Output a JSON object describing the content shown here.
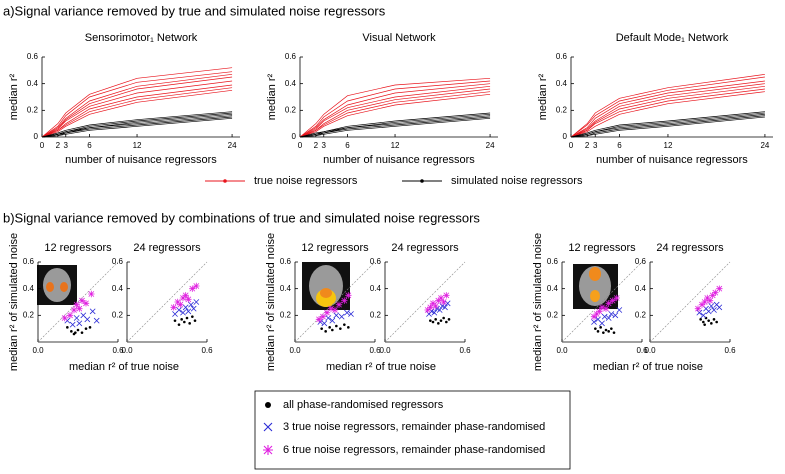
{
  "panel_a_title": "a)Signal variance removed by true and simulated noise regressors",
  "panel_b_title": "b)Signal variance removed by combinations of true and simulated noise regressors",
  "chart_data": [
    {
      "type": "line",
      "title": "Sensorimotor₁ Network",
      "xlabel": "number of nuisance regressors",
      "ylabel": "median r²",
      "x": [
        0,
        2,
        3,
        6,
        12,
        24
      ],
      "xlim": [
        0,
        25
      ],
      "xticks": [
        0,
        2,
        3,
        6,
        12,
        24
      ],
      "ylim": [
        0,
        0.6
      ],
      "yticks": [
        0,
        0.2,
        0.4,
        0.6
      ],
      "series": [
        {
          "name": "true noise regressors",
          "color": "#e8141c",
          "lines": [
            [
              0,
              0.1,
              0.18,
              0.32,
              0.44,
              0.52
            ],
            [
              0,
              0.08,
              0.16,
              0.3,
              0.41,
              0.49
            ],
            [
              0,
              0.07,
              0.14,
              0.27,
              0.38,
              0.47
            ],
            [
              0,
              0.06,
              0.13,
              0.25,
              0.36,
              0.45
            ],
            [
              0,
              0.06,
              0.12,
              0.23,
              0.33,
              0.42
            ],
            [
              0,
              0.05,
              0.1,
              0.21,
              0.3,
              0.39
            ],
            [
              0,
              0.05,
              0.09,
              0.19,
              0.28,
              0.37
            ],
            [
              0,
              0.04,
              0.08,
              0.17,
              0.26,
              0.35
            ]
          ]
        },
        {
          "name": "simulated noise regressors",
          "color": "#000000",
          "lines": [
            [
              0,
              0.03,
              0.05,
              0.09,
              0.13,
              0.19
            ],
            [
              0,
              0.02,
              0.04,
              0.08,
              0.12,
              0.18
            ],
            [
              0,
              0.02,
              0.04,
              0.07,
              0.11,
              0.17
            ],
            [
              0,
              0.02,
              0.03,
              0.07,
              0.1,
              0.16
            ],
            [
              0,
              0.01,
              0.03,
              0.06,
              0.09,
              0.15
            ],
            [
              0,
              0.01,
              0.02,
              0.05,
              0.08,
              0.14
            ]
          ]
        }
      ]
    },
    {
      "type": "line",
      "title": "Visual Network",
      "xlabel": "number of nuisance regressors",
      "ylabel": "median r²",
      "x": [
        0,
        2,
        3,
        6,
        12,
        24
      ],
      "xlim": [
        0,
        25
      ],
      "xticks": [
        0,
        2,
        3,
        6,
        12,
        24
      ],
      "ylim": [
        0,
        0.6
      ],
      "yticks": [
        0,
        0.2,
        0.4,
        0.6
      ],
      "series": [
        {
          "color": "#e8141c",
          "lines": [
            [
              0,
              0.1,
              0.17,
              0.31,
              0.39,
              0.44
            ],
            [
              0,
              0.08,
              0.15,
              0.27,
              0.36,
              0.42
            ],
            [
              0,
              0.07,
              0.13,
              0.24,
              0.33,
              0.4
            ],
            [
              0,
              0.06,
              0.12,
              0.22,
              0.3,
              0.38
            ],
            [
              0,
              0.05,
              0.1,
              0.2,
              0.28,
              0.36
            ],
            [
              0,
              0.05,
              0.09,
              0.18,
              0.26,
              0.34
            ],
            [
              0,
              0.04,
              0.08,
              0.16,
              0.24,
              0.32
            ]
          ]
        },
        {
          "color": "#000000",
          "lines": [
            [
              0,
              0.03,
              0.04,
              0.08,
              0.12,
              0.18
            ],
            [
              0,
              0.02,
              0.04,
              0.07,
              0.11,
              0.17
            ],
            [
              0,
              0.02,
              0.03,
              0.07,
              0.1,
              0.16
            ],
            [
              0,
              0.01,
              0.03,
              0.06,
              0.09,
              0.15
            ],
            [
              0,
              0.01,
              0.02,
              0.05,
              0.08,
              0.14
            ]
          ]
        }
      ]
    },
    {
      "type": "line",
      "title": "Default Mode₁ Network",
      "xlabel": "number of nuisance regressors",
      "ylabel": "median r²",
      "x": [
        0,
        2,
        3,
        6,
        12,
        24
      ],
      "xlim": [
        0,
        25
      ],
      "xticks": [
        0,
        2,
        3,
        6,
        12,
        24
      ],
      "ylim": [
        0,
        0.6
      ],
      "yticks": [
        0,
        0.2,
        0.4,
        0.6
      ],
      "series": [
        {
          "color": "#e8141c",
          "lines": [
            [
              0,
              0.1,
              0.18,
              0.29,
              0.37,
              0.47
            ],
            [
              0,
              0.09,
              0.16,
              0.27,
              0.35,
              0.45
            ],
            [
              0,
              0.07,
              0.14,
              0.25,
              0.33,
              0.42
            ],
            [
              0,
              0.06,
              0.12,
              0.23,
              0.31,
              0.4
            ],
            [
              0,
              0.05,
              0.11,
              0.21,
              0.29,
              0.38
            ],
            [
              0,
              0.05,
              0.1,
              0.19,
              0.27,
              0.36
            ],
            [
              0,
              0.04,
              0.08,
              0.17,
              0.25,
              0.34
            ]
          ]
        },
        {
          "color": "#000000",
          "lines": [
            [
              0,
              0.03,
              0.05,
              0.09,
              0.12,
              0.19
            ],
            [
              0,
              0.02,
              0.04,
              0.08,
              0.11,
              0.18
            ],
            [
              0,
              0.02,
              0.04,
              0.07,
              0.1,
              0.17
            ],
            [
              0,
              0.01,
              0.03,
              0.06,
              0.09,
              0.16
            ],
            [
              0,
              0.01,
              0.02,
              0.05,
              0.08,
              0.15
            ]
          ]
        }
      ]
    },
    {
      "type": "scatter",
      "title": "12 regressors",
      "xlabel": "median r² of true noise",
      "ylabel": "median r² of simulated noise",
      "xlim": [
        0,
        0.6
      ],
      "ylim": [
        0,
        0.6
      ],
      "xticks": [
        {
          "value": 0,
          "label": "0.0"
        },
        {
          "value": 0.6,
          "label": "0.6"
        }
      ],
      "yticks": [
        0.2,
        0.4,
        0.6
      ],
      "series": [
        {
          "name": "all phase-randomised regressors",
          "color": "#000000",
          "marker": "dot",
          "x": [
            0.22,
            0.25,
            0.28,
            0.3,
            0.33,
            0.36,
            0.39,
            0.27
          ],
          "y": [
            0.11,
            0.08,
            0.07,
            0.09,
            0.07,
            0.1,
            0.11,
            0.06
          ]
        },
        {
          "name": "3 true noise regressors, remainder phase-randomised",
          "color": "#2b2bd6",
          "marker": "x",
          "x": [
            0.22,
            0.26,
            0.29,
            0.31,
            0.34,
            0.37,
            0.41,
            0.44
          ],
          "y": [
            0.16,
            0.13,
            0.18,
            0.14,
            0.2,
            0.17,
            0.23,
            0.16
          ]
        },
        {
          "name": "6 true noise regressors, remainder phase-randomised",
          "color": "#e020e0",
          "marker": "star",
          "x": [
            0.2,
            0.24,
            0.27,
            0.29,
            0.31,
            0.33,
            0.36,
            0.4
          ],
          "y": [
            0.18,
            0.2,
            0.24,
            0.28,
            0.25,
            0.31,
            0.29,
            0.36
          ]
        }
      ]
    },
    {
      "type": "scatter",
      "title": "24 regressors",
      "xlim": [
        0,
        0.6
      ],
      "ylim": [
        0,
        0.6
      ],
      "xticks": [
        {
          "value": 0,
          "label": "0.0"
        },
        {
          "value": 0.6,
          "label": "0.6"
        }
      ],
      "yticks": [
        0.2,
        0.4,
        0.6
      ],
      "series": [
        {
          "color": "#000000",
          "marker": "dot",
          "x": [
            0.36,
            0.39,
            0.41,
            0.43,
            0.45,
            0.47,
            0.49,
            0.51
          ],
          "y": [
            0.16,
            0.13,
            0.17,
            0.15,
            0.18,
            0.14,
            0.19,
            0.16
          ]
        },
        {
          "color": "#2b2bd6",
          "marker": "x",
          "x": [
            0.36,
            0.39,
            0.42,
            0.44,
            0.46,
            0.48,
            0.5,
            0.52
          ],
          "y": [
            0.21,
            0.24,
            0.22,
            0.26,
            0.23,
            0.28,
            0.25,
            0.3
          ]
        },
        {
          "color": "#e020e0",
          "marker": "star",
          "x": [
            0.35,
            0.38,
            0.4,
            0.42,
            0.44,
            0.46,
            0.49,
            0.52
          ],
          "y": [
            0.26,
            0.3,
            0.28,
            0.33,
            0.35,
            0.32,
            0.4,
            0.42
          ]
        }
      ]
    },
    {
      "type": "scatter",
      "title": "12 regressors",
      "xlabel": "median r² of true noise",
      "ylabel": "median r² of simulated noise",
      "xlim": [
        0,
        0.6
      ],
      "ylim": [
        0,
        0.6
      ],
      "xticks": [
        {
          "value": 0,
          "label": "0.0"
        },
        {
          "value": 0.6,
          "label": "0.6"
        }
      ],
      "yticks": [
        0.2,
        0.4,
        0.6
      ],
      "series": [
        {
          "color": "#000000",
          "marker": "dot",
          "x": [
            0.2,
            0.23,
            0.26,
            0.28,
            0.31,
            0.34,
            0.37,
            0.4
          ],
          "y": [
            0.1,
            0.08,
            0.11,
            0.09,
            0.12,
            0.1,
            0.13,
            0.11
          ]
        },
        {
          "color": "#2b2bd6",
          "marker": "x",
          "x": [
            0.19,
            0.22,
            0.25,
            0.28,
            0.31,
            0.35,
            0.39,
            0.42
          ],
          "y": [
            0.15,
            0.14,
            0.18,
            0.16,
            0.2,
            0.19,
            0.22,
            0.21
          ]
        },
        {
          "color": "#e020e0",
          "marker": "star",
          "x": [
            0.18,
            0.21,
            0.24,
            0.27,
            0.3,
            0.33,
            0.37,
            0.4
          ],
          "y": [
            0.17,
            0.19,
            0.22,
            0.25,
            0.24,
            0.28,
            0.31,
            0.35
          ]
        }
      ]
    },
    {
      "type": "scatter",
      "title": "24 regressors",
      "xlim": [
        0,
        0.6
      ],
      "ylim": [
        0,
        0.6
      ],
      "xticks": [
        {
          "value": 0,
          "label": "0.0"
        },
        {
          "value": 0.6,
          "label": "0.6"
        }
      ],
      "yticks": [
        0.2,
        0.4,
        0.6
      ],
      "series": [
        {
          "color": "#000000",
          "marker": "dot",
          "x": [
            0.34,
            0.36,
            0.38,
            0.4,
            0.42,
            0.44,
            0.46,
            0.48
          ],
          "y": [
            0.16,
            0.15,
            0.17,
            0.14,
            0.16,
            0.18,
            0.15,
            0.17
          ]
        },
        {
          "color": "#2b2bd6",
          "marker": "x",
          "x": [
            0.33,
            0.35,
            0.37,
            0.39,
            0.41,
            0.43,
            0.45,
            0.47
          ],
          "y": [
            0.21,
            0.23,
            0.22,
            0.25,
            0.24,
            0.27,
            0.26,
            0.29
          ]
        },
        {
          "color": "#e020e0",
          "marker": "star",
          "x": [
            0.32,
            0.34,
            0.36,
            0.38,
            0.4,
            0.42,
            0.44,
            0.46
          ],
          "y": [
            0.24,
            0.26,
            0.29,
            0.27,
            0.31,
            0.33,
            0.3,
            0.35
          ]
        }
      ]
    },
    {
      "type": "scatter",
      "title": "12 regressors",
      "xlabel": "median r² of true noise",
      "ylabel": "median r² of simulated noise",
      "xlim": [
        0,
        0.6
      ],
      "ylim": [
        0,
        0.6
      ],
      "xticks": [
        {
          "value": 0,
          "label": "0.0"
        },
        {
          "value": 0.6,
          "label": "0.6"
        }
      ],
      "yticks": [
        0.2,
        0.4,
        0.6
      ],
      "series": [
        {
          "color": "#000000",
          "marker": "dot",
          "x": [
            0.25,
            0.27,
            0.29,
            0.31,
            0.33,
            0.35,
            0.37,
            0.39
          ],
          "y": [
            0.1,
            0.08,
            0.11,
            0.07,
            0.09,
            0.08,
            0.1,
            0.07
          ]
        },
        {
          "color": "#2b2bd6",
          "marker": "x",
          "x": [
            0.24,
            0.27,
            0.3,
            0.32,
            0.35,
            0.37,
            0.4,
            0.43
          ],
          "y": [
            0.15,
            0.17,
            0.14,
            0.19,
            0.18,
            0.21,
            0.2,
            0.24
          ]
        },
        {
          "color": "#e020e0",
          "marker": "star",
          "x": [
            0.24,
            0.26,
            0.28,
            0.3,
            0.33,
            0.35,
            0.38,
            0.41
          ],
          "y": [
            0.19,
            0.21,
            0.23,
            0.26,
            0.25,
            0.29,
            0.31,
            0.33
          ]
        }
      ]
    },
    {
      "type": "scatter",
      "title": "24 regressors",
      "xlim": [
        0,
        0.6
      ],
      "ylim": [
        0,
        0.6
      ],
      "xticks": [
        {
          "value": 0,
          "label": "0.0"
        },
        {
          "value": 0.6,
          "label": "0.6"
        }
      ],
      "yticks": [
        0.2,
        0.4,
        0.6
      ],
      "series": [
        {
          "color": "#000000",
          "marker": "dot",
          "x": [
            0.38,
            0.4,
            0.42,
            0.44,
            0.46,
            0.48,
            0.5,
            0.41
          ],
          "y": [
            0.17,
            0.15,
            0.18,
            0.16,
            0.14,
            0.17,
            0.15,
            0.13
          ]
        },
        {
          "color": "#2b2bd6",
          "marker": "x",
          "x": [
            0.37,
            0.4,
            0.42,
            0.44,
            0.46,
            0.48,
            0.5,
            0.52
          ],
          "y": [
            0.22,
            0.2,
            0.25,
            0.23,
            0.27,
            0.24,
            0.28,
            0.26
          ]
        },
        {
          "color": "#e020e0",
          "marker": "star",
          "x": [
            0.36,
            0.39,
            0.41,
            0.43,
            0.45,
            0.47,
            0.49,
            0.52
          ],
          "y": [
            0.25,
            0.28,
            0.3,
            0.33,
            0.31,
            0.35,
            0.37,
            0.4
          ]
        }
      ]
    }
  ]
}
